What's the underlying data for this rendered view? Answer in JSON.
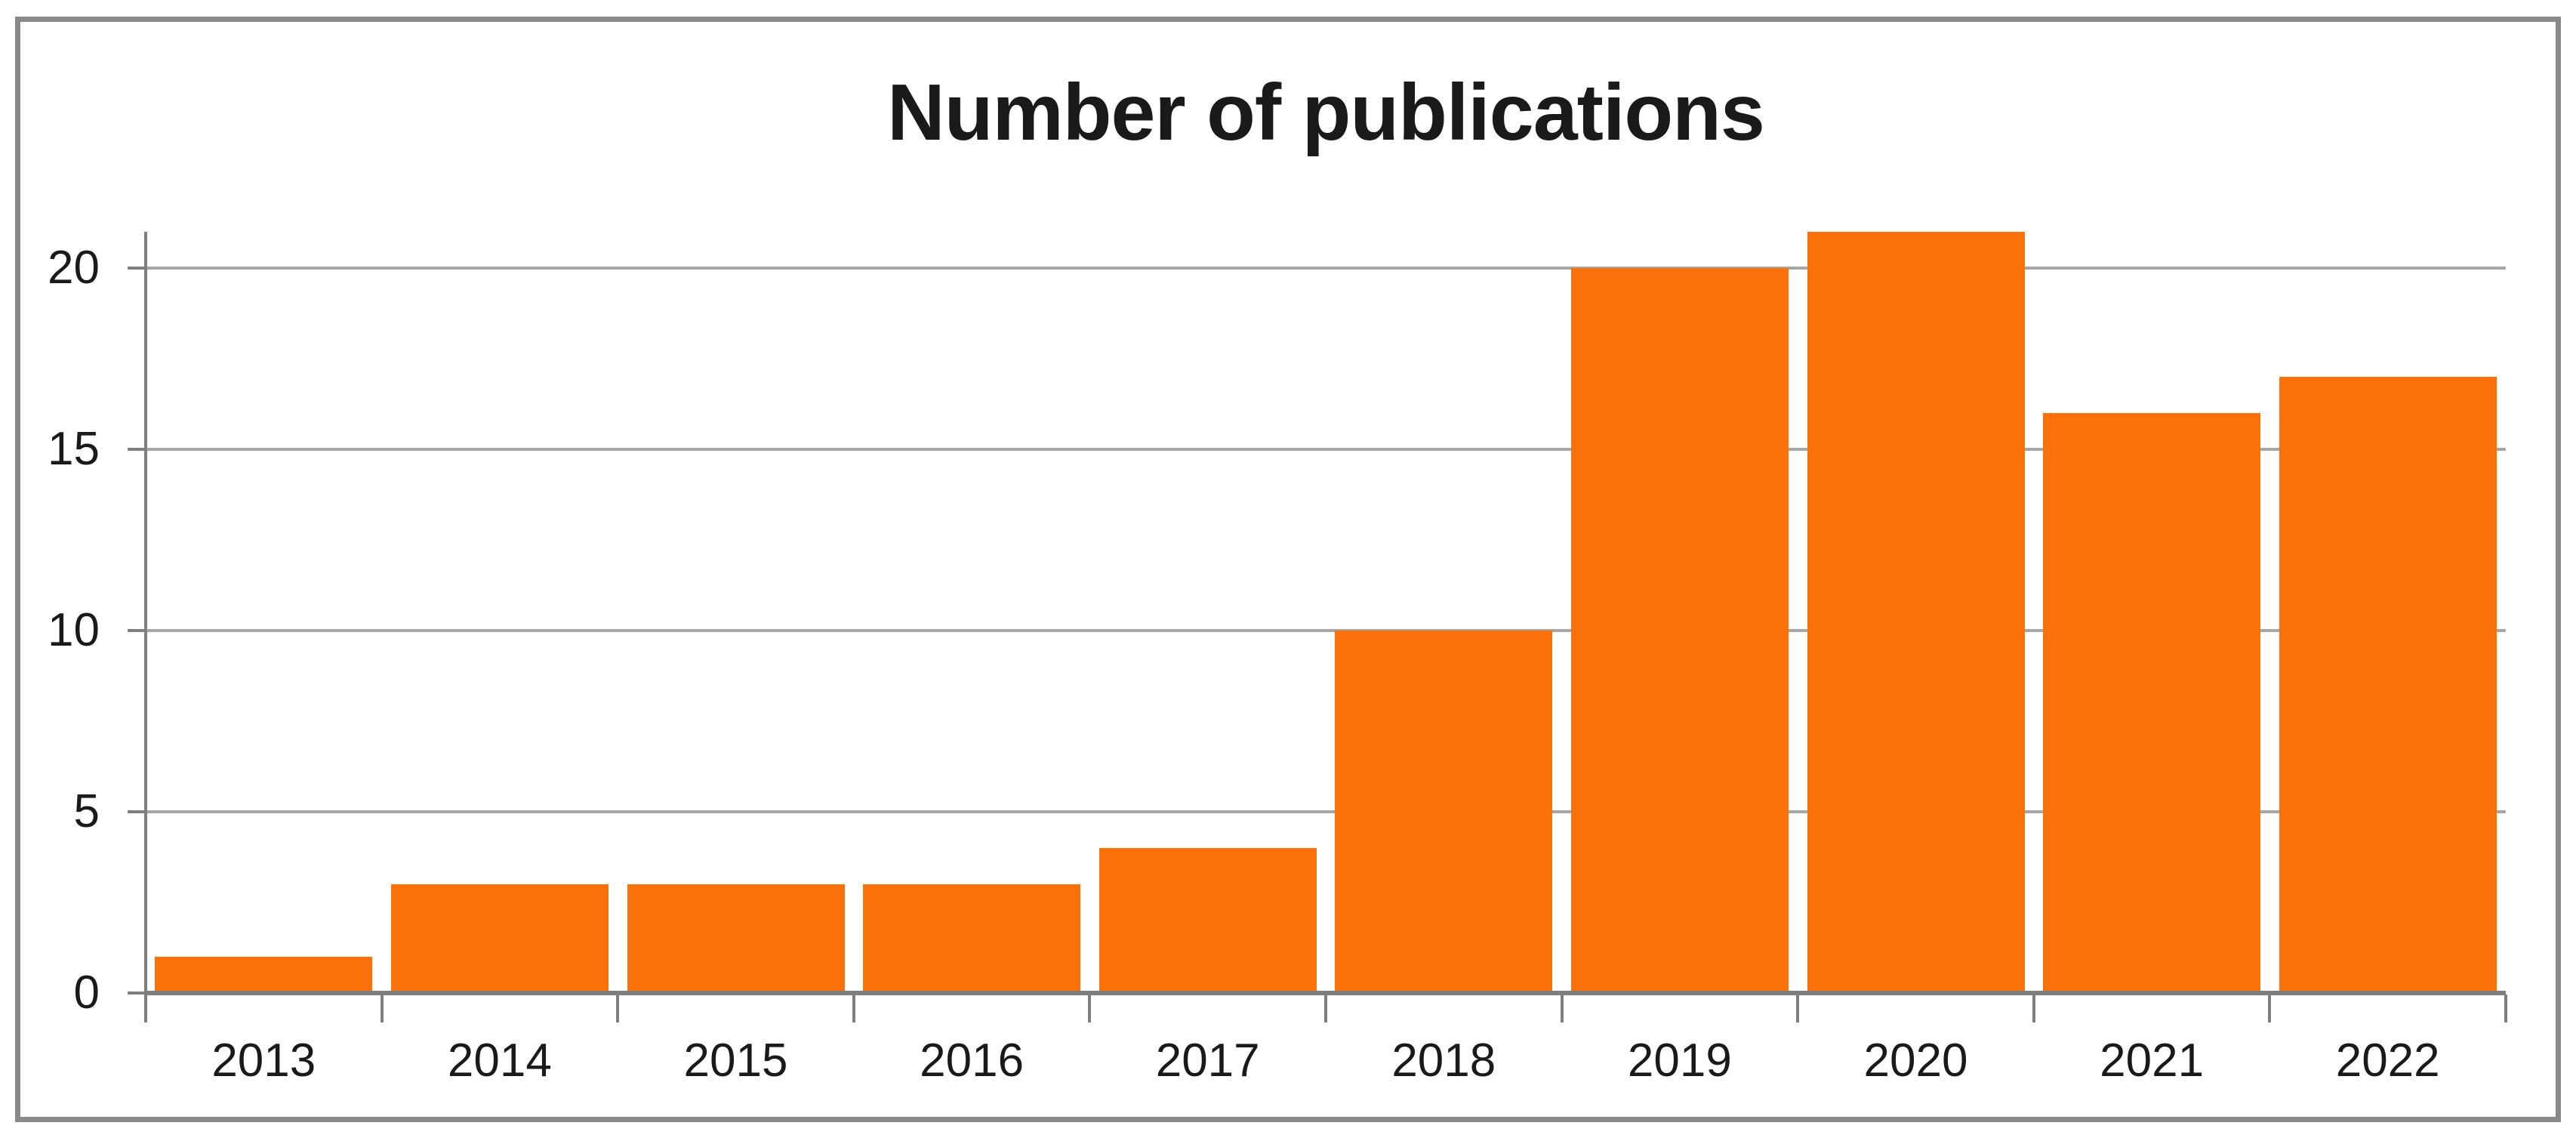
{
  "chart_data": {
    "type": "bar",
    "title": "Number of publications",
    "categories": [
      "2013",
      "2014",
      "2015",
      "2016",
      "2017",
      "2018",
      "2019",
      "2020",
      "2021",
      "2022"
    ],
    "values": [
      1,
      3,
      3,
      3,
      4,
      10,
      20,
      21,
      16,
      17
    ],
    "xlabel": "",
    "ylabel": "",
    "ylim": [
      0,
      21
    ],
    "yticks": [
      0,
      5,
      10,
      15,
      20
    ],
    "grid": "horizontal",
    "legend": "none",
    "colors": {
      "bar": "#FA7009",
      "gridline": "#A6A6A6",
      "axis": "#7E7E7E",
      "text": "#1A1A1A",
      "frame_border": "#898989",
      "background": "#FFFFFF"
    }
  }
}
